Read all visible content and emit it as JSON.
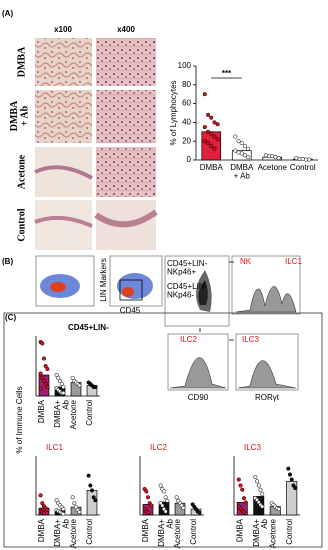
{
  "figure": {
    "panel_labels": [
      "(A)",
      "(B)",
      "(C)"
    ],
    "magnifications": [
      "x100",
      "x400"
    ],
    "row_labels": [
      "DMBA",
      "DMBA\n+ Ab",
      "Acetone",
      "Control"
    ],
    "c_ylabel": "% of Immune Cells"
  },
  "flow": {
    "ylabel_lin": "LIN Markers",
    "xlabel_cd45": "CD45",
    "gate_pos": "CD45+LIN-\nNKp46+",
    "gate_neg": "CD45+LIN-\nNKp46-",
    "nk": "NK",
    "ilc1": "ILC1",
    "ilc2": "ILC2",
    "ilc3": "ILC3",
    "cd90": "CD90",
    "ror": "RORγt"
  },
  "chart_data": [
    {
      "type": "bar",
      "ylabel": "% of Lymphocytes",
      "categories": [
        "DMBA",
        "DMBA\n+ Ab",
        "Acetone",
        "Control"
      ],
      "values": [
        30,
        10,
        3,
        1
      ],
      "colors": [
        "#e0203c",
        "#ffffff",
        "#ffffff",
        "#ffffff"
      ],
      "point_colors": [
        "#d81020",
        "#ffffff",
        "#ffffff",
        "#ffffff"
      ],
      "points": [
        [
          70,
          48,
          45,
          40,
          38,
          35,
          30,
          28,
          25,
          22,
          20,
          18,
          15,
          12
        ],
        [
          25,
          20,
          18,
          15,
          12,
          10,
          8,
          7,
          5,
          3
        ],
        [
          5,
          4,
          4,
          3,
          2
        ],
        [
          2,
          1,
          1,
          0.5,
          0.5
        ]
      ],
      "ylim": [
        0,
        100
      ],
      "yticks": [
        0,
        20,
        40,
        60,
        80,
        100
      ],
      "annotation": "***"
    },
    {
      "type": "bar",
      "title": "CD45+LIN-",
      "title_color": "#000000",
      "categories": [
        "DMBA",
        "DMBA+\nAb",
        "Acetone",
        "Control"
      ],
      "values": [
        14,
        6,
        9,
        7
      ],
      "colors": [
        "#9e1f72",
        "#111111",
        "#9a9a9a",
        "#cfcfcf"
      ],
      "point_colors": [
        "#e01020",
        "#ffffff",
        "#ffffff",
        "#111111"
      ],
      "points": [
        [
          36,
          35,
          25,
          20,
          18,
          15,
          12,
          10,
          8,
          6,
          5
        ],
        [
          14,
          12,
          10,
          8,
          6,
          5,
          4,
          3,
          2,
          2
        ],
        [
          12,
          10,
          9,
          8,
          7
        ],
        [
          9,
          8,
          7,
          6,
          6
        ]
      ],
      "ylim": [
        0,
        40
      ]
    },
    {
      "type": "bar",
      "title": "ILC1",
      "title_color": "#e01010",
      "categories": [
        "DMBA",
        "DMBA+\nAb",
        "Acetone",
        "Control"
      ],
      "values": [
        7,
        5,
        8,
        25
      ],
      "colors": [
        "#9e1f72",
        "#111111",
        "#9a9a9a",
        "#cfcfcf"
      ],
      "point_colors": [
        "#e01020",
        "#ffffff",
        "#ffffff",
        "#111111"
      ],
      "points": [
        [
          20,
          12,
          9,
          7,
          5,
          4,
          3,
          2
        ],
        [
          15,
          12,
          10,
          8,
          6,
          5,
          4,
          3,
          2,
          1
        ],
        [
          18,
          12,
          8,
          5,
          3
        ],
        [
          40,
          30,
          25,
          18,
          15
        ]
      ],
      "ylim": [
        0,
        60
      ]
    },
    {
      "type": "bar",
      "title": "ILC2",
      "title_color": "#e01010",
      "categories": [
        "DMBA",
        "DMBA+\nAb",
        "Acetone",
        "Control"
      ],
      "values": [
        9,
        11,
        10,
        5
      ],
      "colors": [
        "#9e1f72",
        "#111111",
        "#9a9a9a",
        "#cfcfcf"
      ],
      "point_colors": [
        "#e01020",
        "#ffffff",
        "#ffffff",
        "#111111"
      ],
      "points": [
        [
          22,
          20,
          15,
          10,
          8,
          5,
          3,
          2
        ],
        [
          25,
          22,
          20,
          15,
          12,
          10,
          8,
          5,
          3
        ],
        [
          15,
          12,
          10,
          8,
          6
        ],
        [
          9,
          7,
          5,
          3,
          2
        ]
      ],
      "ylim": [
        0,
        50
      ]
    },
    {
      "type": "bar",
      "title": "ILC3",
      "title_color": "#e01010",
      "categories": [
        "DMBA",
        "DMBA+\nAb",
        "Acetone",
        "Control"
      ],
      "values": [
        15,
        22,
        10,
        40
      ],
      "colors": [
        "#9e1f72",
        "#111111",
        "#9a9a9a",
        "#cfcfcf"
      ],
      "point_colors": [
        "#e01020",
        "#ffffff",
        "#ffffff",
        "#111111"
      ],
      "points": [
        [
          42,
          35,
          30,
          20,
          15,
          10,
          8,
          5,
          3
        ],
        [
          45,
          40,
          35,
          30,
          25,
          20,
          18,
          15,
          12,
          10
        ],
        [
          14,
          12,
          10,
          8,
          7
        ],
        [
          55,
          48,
          42,
          35,
          32
        ]
      ],
      "ylim": [
        0,
        70
      ]
    }
  ]
}
